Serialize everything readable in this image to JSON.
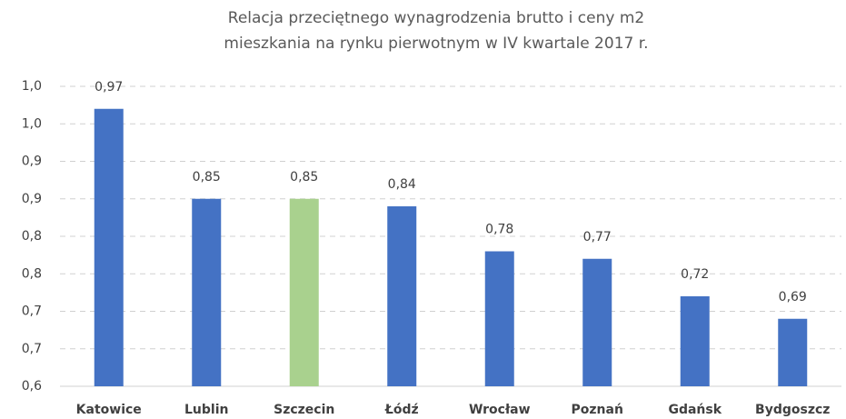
{
  "chart_data": {
    "type": "bar",
    "title": [
      "Relacja przeciętnego wynagrodzenia brutto i ceny m2",
      "mieszkania na rynku pierwotnym w IV kwartale 2017 r."
    ],
    "categories": [
      "Katowice",
      "Lublin",
      "Szczecin",
      "Łódź",
      "Wrocław",
      "Poznań",
      "Gdańsk",
      "Bydgoszcz"
    ],
    "values": [
      0.97,
      0.85,
      0.85,
      0.84,
      0.78,
      0.77,
      0.72,
      0.69
    ],
    "value_labels": [
      "0,97",
      "0,85",
      "0,85",
      "0,84",
      "0,78",
      "0,77",
      "0,72",
      "0,69"
    ],
    "colors": [
      "#4472c4",
      "#4472c4",
      "#a9d18e",
      "#4472c4",
      "#4472c4",
      "#4472c4",
      "#4472c4",
      "#4472c4"
    ],
    "ylim": [
      0.6,
      1.0
    ],
    "yticks": [
      {
        "value": 0.6,
        "label": "0,6"
      },
      {
        "value": 0.65,
        "label": "0,7"
      },
      {
        "value": 0.7,
        "label": "0,7"
      },
      {
        "value": 0.75,
        "label": "0,8"
      },
      {
        "value": 0.8,
        "label": "0,8"
      },
      {
        "value": 0.85,
        "label": "0,9"
      },
      {
        "value": 0.9,
        "label": "0,9"
      },
      {
        "value": 0.95,
        "label": "1,0"
      },
      {
        "value": 1.0,
        "label": "1,0"
      }
    ],
    "grid": true
  }
}
